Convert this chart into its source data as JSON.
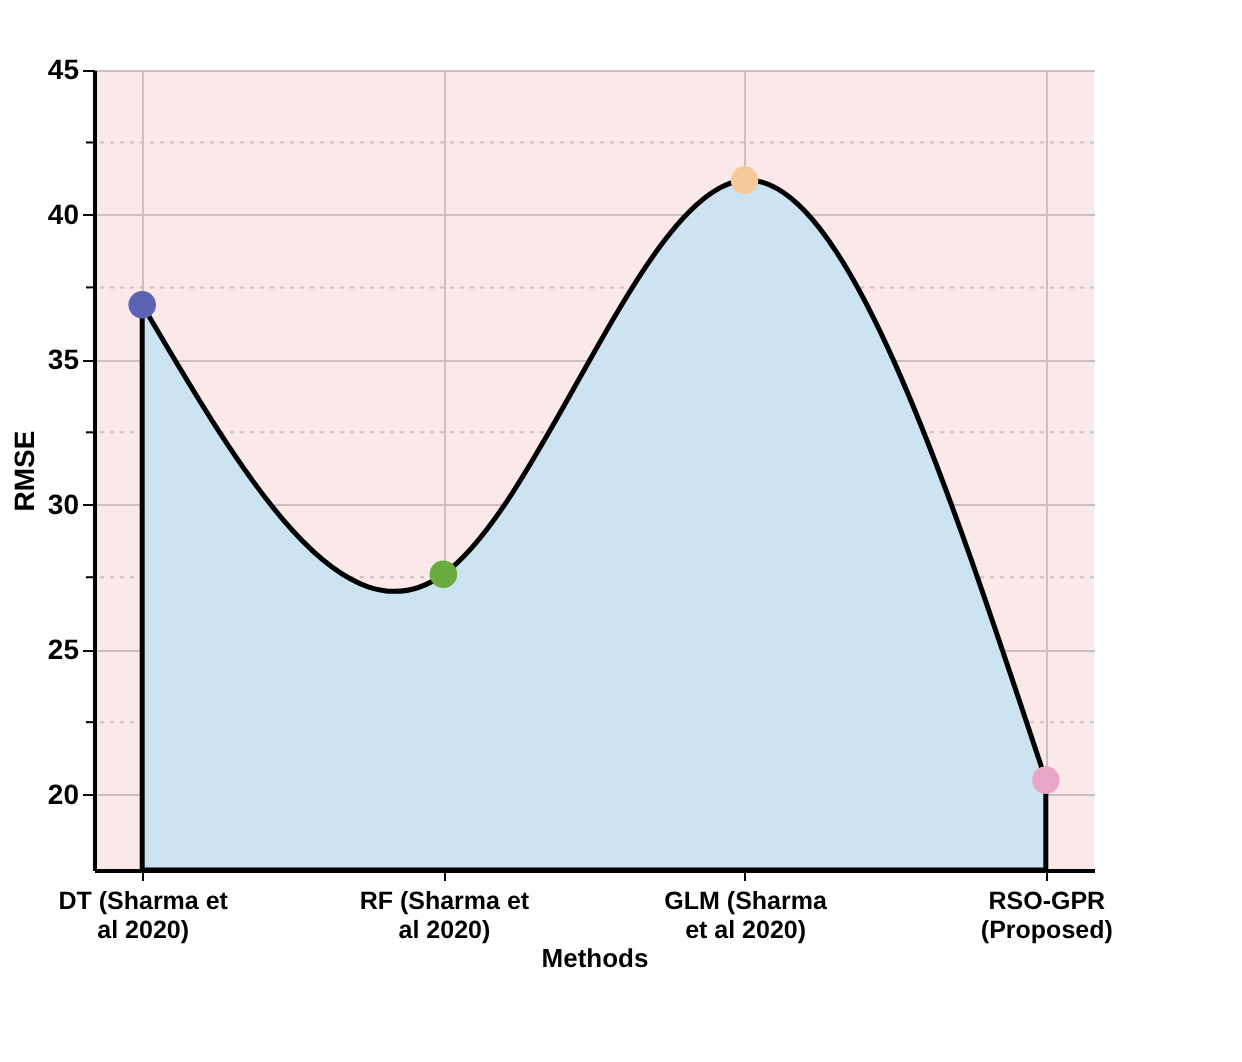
{
  "chart_data": {
    "type": "area",
    "xlabel": "Methods",
    "ylabel": "RMSE",
    "categories": [
      "DT (Sharma et al 2020)",
      "RF (Sharma et al 2020)",
      "GLM (Sharma et al 2020)",
      "RSO-GPR (Proposed)"
    ],
    "series": [
      {
        "color": "#cce4f1",
        "values": [
          36.9,
          27.6,
          41.2,
          20.5
        ]
      }
    ],
    "colors": [
      "#5b63b5",
      "#6aab3f",
      "#f5c99a",
      "#e9a6c8"
    ],
    "marker": "circle",
    "ylim": [
      17.4,
      45
    ],
    "yticks": [
      20,
      {
        "value": 22.5,
        "label": null
      },
      25,
      {
        "value": 27.5,
        "label": null
      },
      30,
      {
        "value": 32.5,
        "label": null
      },
      35,
      {
        "value": 37.5,
        "label": null
      },
      40,
      {
        "value": 42.5,
        "label": null
      },
      45
    ],
    "grid": true
  }
}
